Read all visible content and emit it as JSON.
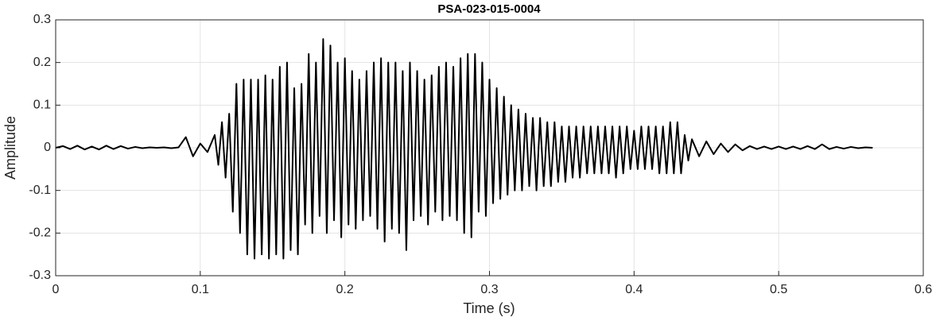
{
  "chart_data": {
    "type": "line",
    "title": "PSA-023-015-0004",
    "x_label": "Time (s)",
    "y_label": "Amplitude",
    "color": "#000000",
    "grid": true,
    "xlim": [
      0,
      0.6
    ],
    "xticks": [
      0,
      0.1,
      0.2,
      0.3,
      0.4,
      0.5,
      0.6
    ],
    "ylim": [
      -0.3,
      0.3
    ],
    "yticks": [
      -0.3,
      -0.2,
      -0.1,
      0,
      0.1,
      0.2,
      0.3
    ],
    "x": [
      0,
      0.005,
      0.01,
      0.015,
      0.02,
      0.025,
      0.03,
      0.035,
      0.04,
      0.045,
      0.05,
      0.055,
      0.06,
      0.065,
      0.07,
      0.075,
      0.08,
      0.085,
      0.09,
      0.095,
      0.1,
      0.105,
      0.11,
      0.1125,
      0.115,
      0.1175,
      0.12,
      0.1225,
      0.125,
      0.1275,
      0.13,
      0.1325,
      0.135,
      0.1375,
      0.14,
      0.1425,
      0.145,
      0.1475,
      0.15,
      0.1525,
      0.155,
      0.1575,
      0.16,
      0.1625,
      0.165,
      0.1675,
      0.17,
      0.1725,
      0.175,
      0.1775,
      0.18,
      0.1825,
      0.185,
      0.1875,
      0.19,
      0.1925,
      0.195,
      0.1975,
      0.2,
      0.2025,
      0.205,
      0.2075,
      0.21,
      0.2125,
      0.215,
      0.2175,
      0.22,
      0.2225,
      0.225,
      0.2275,
      0.23,
      0.2325,
      0.235,
      0.2375,
      0.24,
      0.2425,
      0.245,
      0.2475,
      0.25,
      0.2525,
      0.255,
      0.2575,
      0.26,
      0.2625,
      0.265,
      0.2675,
      0.27,
      0.2725,
      0.275,
      0.2775,
      0.28,
      0.2825,
      0.285,
      0.2875,
      0.29,
      0.2925,
      0.295,
      0.2975,
      0.3,
      0.3025,
      0.305,
      0.3075,
      0.31,
      0.3125,
      0.315,
      0.3175,
      0.32,
      0.3225,
      0.325,
      0.3275,
      0.33,
      0.3325,
      0.335,
      0.3375,
      0.34,
      0.3425,
      0.345,
      0.3475,
      0.35,
      0.3525,
      0.355,
      0.3575,
      0.36,
      0.3625,
      0.365,
      0.3675,
      0.37,
      0.3725,
      0.375,
      0.3775,
      0.38,
      0.3825,
      0.385,
      0.3875,
      0.39,
      0.3925,
      0.395,
      0.3975,
      0.4,
      0.4025,
      0.405,
      0.4075,
      0.41,
      0.4125,
      0.415,
      0.4175,
      0.42,
      0.4225,
      0.425,
      0.4275,
      0.43,
      0.4325,
      0.435,
      0.4375,
      0.44,
      0.445,
      0.45,
      0.455,
      0.46,
      0.465,
      0.47,
      0.475,
      0.48,
      0.485,
      0.49,
      0.495,
      0.5,
      0.505,
      0.51,
      0.515,
      0.52,
      0.525,
      0.53,
      0.535,
      0.54,
      0.545,
      0.55,
      0.555,
      0.56,
      0.565
    ],
    "values": [
      0,
      0.004,
      -0.003,
      0.005,
      -0.004,
      0.003,
      -0.004,
      0.005,
      -0.003,
      0.004,
      -0.002,
      0.002,
      -0.001,
      0.001,
      0,
      0.001,
      -0.001,
      0.001,
      0.025,
      -0.02,
      0.01,
      -0.01,
      0.03,
      -0.04,
      0.06,
      -0.07,
      0.08,
      -0.15,
      0.15,
      -0.2,
      0.16,
      -0.25,
      0.16,
      -0.26,
      0.16,
      -0.25,
      0.17,
      -0.26,
      0.16,
      -0.25,
      0.19,
      -0.26,
      0.2,
      -0.24,
      0.14,
      -0.25,
      0.15,
      -0.18,
      0.22,
      -0.2,
      0.2,
      -0.16,
      0.255,
      -0.2,
      0.24,
      -0.17,
      0.2,
      -0.21,
      0.21,
      -0.18,
      0.18,
      -0.19,
      0.16,
      -0.17,
      0.18,
      -0.16,
      0.2,
      -0.19,
      0.21,
      -0.22,
      0.2,
      -0.19,
      0.2,
      -0.2,
      0.18,
      -0.24,
      0.2,
      -0.17,
      0.18,
      -0.16,
      0.16,
      -0.18,
      0.17,
      -0.15,
      0.19,
      -0.17,
      0.2,
      -0.16,
      0.19,
      -0.17,
      0.21,
      -0.2,
      0.22,
      -0.21,
      0.22,
      -0.15,
      0.2,
      -0.16,
      0.16,
      -0.13,
      0.14,
      -0.12,
      0.12,
      -0.11,
      0.1,
      -0.1,
      0.09,
      -0.1,
      0.08,
      -0.09,
      0.07,
      -0.1,
      0.07,
      -0.09,
      0.06,
      -0.09,
      0.06,
      -0.08,
      0.05,
      -0.08,
      0.05,
      -0.07,
      0.05,
      -0.07,
      0.05,
      -0.06,
      0.05,
      -0.06,
      0.05,
      -0.06,
      0.05,
      -0.06,
      0.05,
      -0.07,
      0.05,
      -0.06,
      0.05,
      -0.05,
      0.04,
      -0.05,
      0.05,
      -0.05,
      0.05,
      -0.05,
      0.05,
      -0.06,
      0.05,
      -0.06,
      0.06,
      -0.06,
      0.06,
      -0.06,
      0.03,
      -0.03,
      0.02,
      -0.02,
      0.015,
      -0.015,
      0.01,
      -0.01,
      0.008,
      -0.006,
      0.004,
      -0.003,
      0.003,
      -0.003,
      0.003,
      -0.003,
      0.003,
      -0.003,
      0.004,
      -0.003,
      0.008,
      -0.003,
      0.002,
      -0.002,
      0.002,
      -0.001,
      0.001,
      0
    ]
  }
}
